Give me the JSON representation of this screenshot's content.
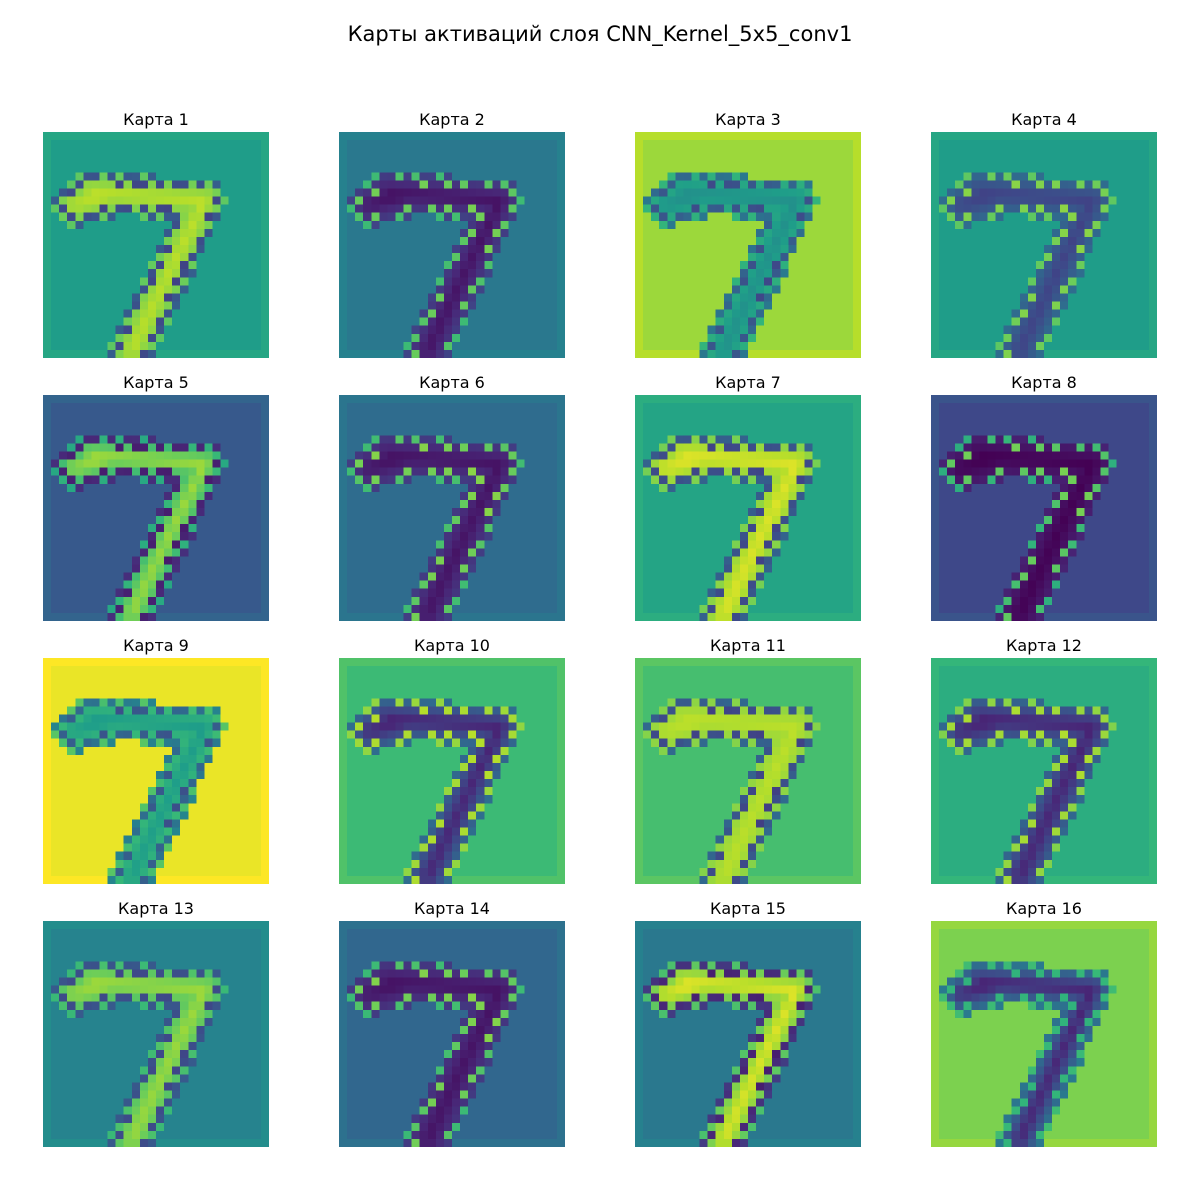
{
  "chart_data": {
    "type": "heatmap",
    "title": "Карты активаций слоя CNN_Kernel_5x5_conv1",
    "colormap": "viridis",
    "grid": false,
    "colors": {
      "viridis": [
        "#440154",
        "#482878",
        "#3e4989",
        "#31688e",
        "#26828e",
        "#1f9e89",
        "#35b779",
        "#6ece58",
        "#b5de2b",
        "#fde725"
      ]
    },
    "maps": [
      {
        "title": "Карта 1",
        "background": 0.55,
        "stroke": [
          0.1,
          0.9
        ]
      },
      {
        "title": "Карта 2",
        "background": 0.4,
        "stroke": [
          0.05,
          0.9
        ]
      },
      {
        "title": "Карта 3",
        "background": 0.85,
        "stroke": [
          0.05,
          0.5
        ]
      },
      {
        "title": "Карта 4",
        "background": 0.55,
        "stroke": [
          0.2,
          0.9
        ]
      },
      {
        "title": "Карта 5",
        "background": 0.28,
        "stroke": [
          0.02,
          0.85
        ]
      },
      {
        "title": "Карта 6",
        "background": 0.35,
        "stroke": [
          0.05,
          0.95
        ]
      },
      {
        "title": "Карта 7",
        "background": 0.58,
        "stroke": [
          0.1,
          0.95
        ]
      },
      {
        "title": "Карта 8",
        "background": 0.22,
        "stroke": [
          0.0,
          0.95
        ]
      },
      {
        "title": "Карта 9",
        "background": 0.97,
        "stroke": [
          0.05,
          0.55
        ]
      },
      {
        "title": "Карта 10",
        "background": 0.68,
        "stroke": [
          0.1,
          0.95
        ]
      },
      {
        "title": "Карта 11",
        "background": 0.7,
        "stroke": [
          0.05,
          0.9
        ]
      },
      {
        "title": "Карта 12",
        "background": 0.62,
        "stroke": [
          0.1,
          0.95
        ]
      },
      {
        "title": "Карта 13",
        "background": 0.45,
        "stroke": [
          0.15,
          0.85
        ]
      },
      {
        "title": "Карта 14",
        "background": 0.33,
        "stroke": [
          0.05,
          0.95
        ]
      },
      {
        "title": "Карта 15",
        "background": 0.4,
        "stroke": [
          0.0,
          0.95
        ]
      },
      {
        "title": "Карта 16",
        "background": 0.8,
        "stroke": [
          0.1,
          0.6
        ]
      }
    ]
  }
}
